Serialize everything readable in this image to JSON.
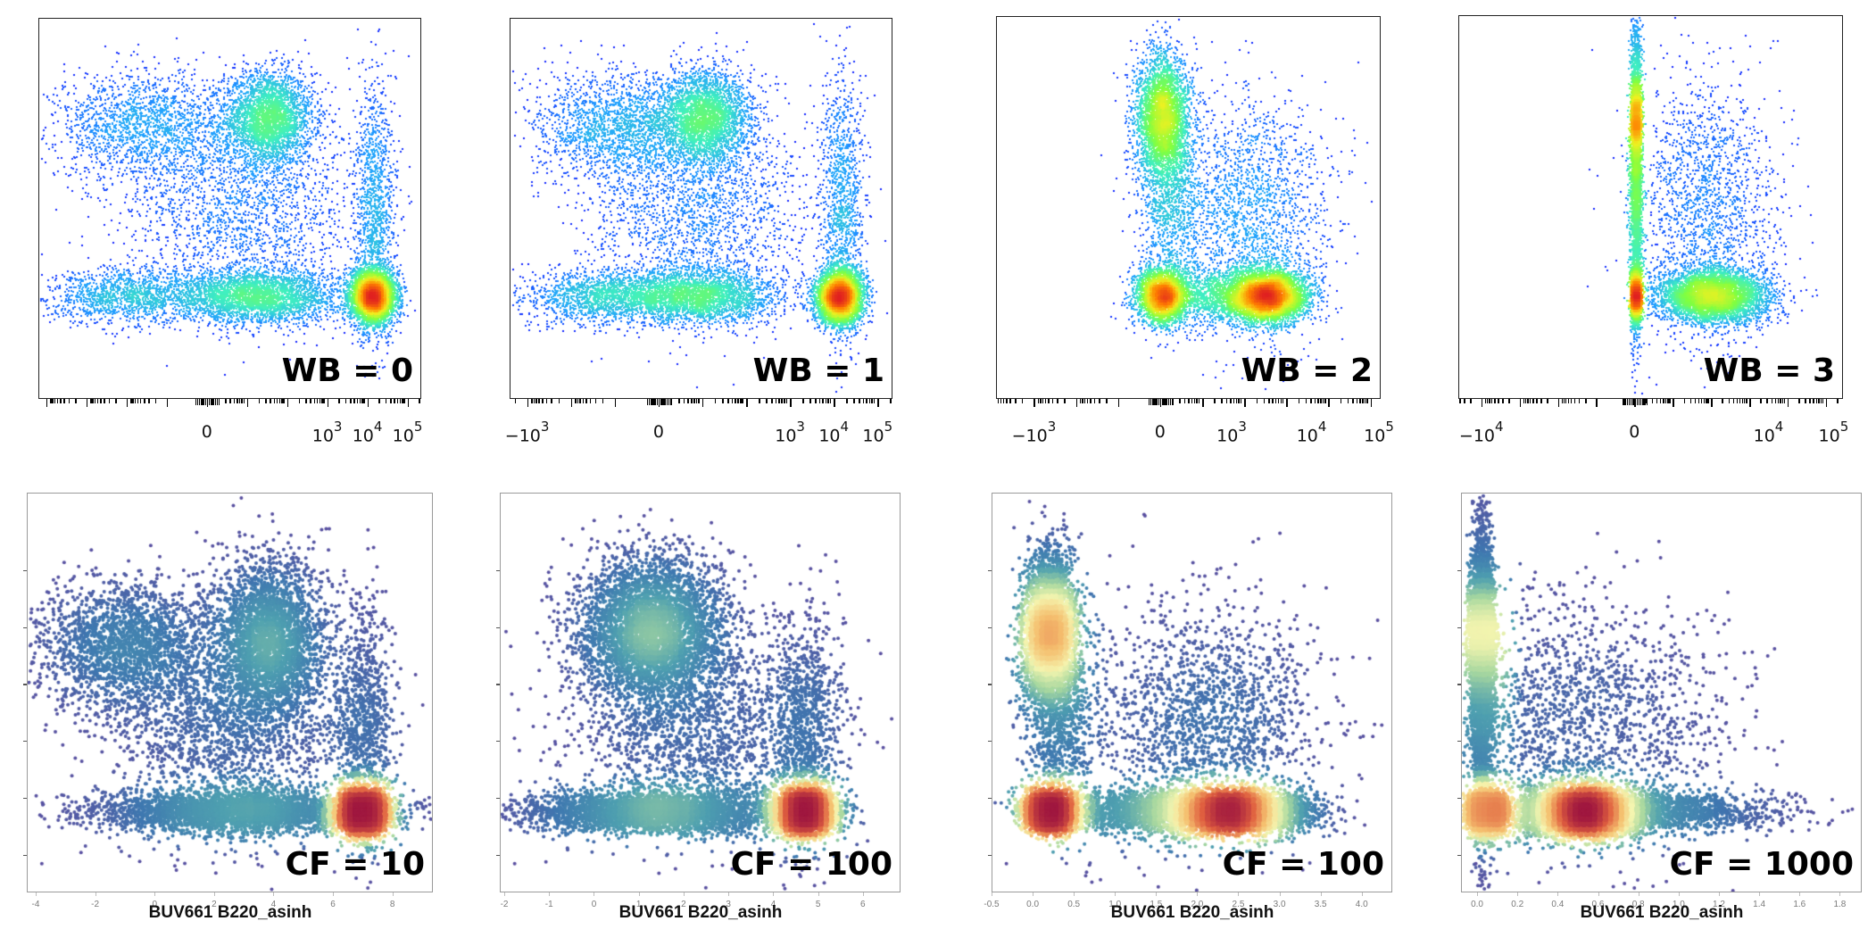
{
  "chart_data": [
    {
      "type": "scatter",
      "style": "flow-pseudocolor",
      "row": "top",
      "label": "WB = 0",
      "xlabel": "",
      "ylabel": "",
      "x_scale": "biexponential",
      "xlim": [
        -4.2,
        5.3
      ],
      "ylim": [
        0,
        1
      ],
      "tick_labels": [
        {
          "text": "0",
          "sup": "",
          "pos": 0
        },
        {
          "text": "10",
          "sup": "3",
          "pos": 3
        },
        {
          "text": "10",
          "sup": "4",
          "pos": 4
        },
        {
          "text": "10",
          "sup": "5",
          "pos": 5
        }
      ],
      "colormap": [
        "#1010ff",
        "#22a0ff",
        "#40f0c0",
        "#80ff40",
        "#f0f020",
        "#ff8000",
        "#e02020"
      ],
      "clusters": [
        {
          "name": "upper-left population",
          "x": 1.5,
          "y": 0.74,
          "sx": 0.55,
          "sy": 0.06,
          "n": 9000
        },
        {
          "name": "upper-left spread",
          "x": -1.6,
          "y": 0.72,
          "sx": 1.1,
          "sy": 0.07,
          "n": 5000
        },
        {
          "name": "lower-left population",
          "x": 1.2,
          "y": 0.27,
          "sx": 1.0,
          "sy": 0.035,
          "n": 9000
        },
        {
          "name": "lower-left spread",
          "x": -2.0,
          "y": 0.27,
          "sx": 1.0,
          "sy": 0.035,
          "n": 4000
        },
        {
          "name": "B220+ population",
          "x": 4.1,
          "y": 0.27,
          "sx": 0.28,
          "sy": 0.035,
          "n": 14000
        },
        {
          "name": "B220+ vertical",
          "x": 4.15,
          "y": 0.5,
          "sx": 0.25,
          "sy": 0.17,
          "n": 3500
        },
        {
          "name": "middle scatter",
          "x": 0.8,
          "y": 0.5,
          "sx": 1.5,
          "sy": 0.14,
          "n": 6000
        }
      ]
    },
    {
      "type": "scatter",
      "style": "flow-pseudocolor",
      "row": "top",
      "label": "WB = 1",
      "xlabel": "",
      "ylabel": "",
      "x_scale": "biexponential",
      "xlim": [
        -3.4,
        5.3
      ],
      "ylim": [
        0,
        1
      ],
      "tick_labels": [
        {
          "text": "−10",
          "sup": "3",
          "pos": -3
        },
        {
          "text": "0",
          "sup": "",
          "pos": 0
        },
        {
          "text": "10",
          "sup": "3",
          "pos": 3
        },
        {
          "text": "10",
          "sup": "4",
          "pos": 4
        },
        {
          "text": "10",
          "sup": "5",
          "pos": 5
        }
      ],
      "colormap": [
        "#1010ff",
        "#22a0ff",
        "#40f0c0",
        "#80ff40",
        "#f0f020",
        "#ff8000",
        "#e02020"
      ],
      "clusters": [
        {
          "name": "upper-left population",
          "x": 1.0,
          "y": 0.74,
          "sx": 0.5,
          "sy": 0.06,
          "n": 9000
        },
        {
          "name": "upper-left spread",
          "x": -1.0,
          "y": 0.72,
          "sx": 0.9,
          "sy": 0.07,
          "n": 5000
        },
        {
          "name": "lower-left population",
          "x": 0.8,
          "y": 0.27,
          "sx": 0.9,
          "sy": 0.035,
          "n": 9000
        },
        {
          "name": "lower-left spread",
          "x": -1.4,
          "y": 0.27,
          "sx": 0.8,
          "sy": 0.035,
          "n": 4000
        },
        {
          "name": "B220+ population",
          "x": 4.1,
          "y": 0.27,
          "sx": 0.26,
          "sy": 0.035,
          "n": 14000
        },
        {
          "name": "B220+ vertical",
          "x": 4.15,
          "y": 0.5,
          "sx": 0.24,
          "sy": 0.17,
          "n": 3500
        },
        {
          "name": "middle scatter",
          "x": 0.8,
          "y": 0.5,
          "sx": 1.3,
          "sy": 0.14,
          "n": 6000
        }
      ]
    },
    {
      "type": "scatter",
      "style": "flow-pseudocolor",
      "row": "top",
      "label": "WB = 2",
      "xlabel": "",
      "ylabel": "",
      "x_scale": "biexponential",
      "xlim": [
        -3.9,
        5.2
      ],
      "ylim": [
        0,
        1
      ],
      "tick_labels": [
        {
          "text": "−10",
          "sup": "3",
          "pos": -3
        },
        {
          "text": "0",
          "sup": "",
          "pos": 0
        },
        {
          "text": "10",
          "sup": "3",
          "pos": 1.7
        },
        {
          "text": "10",
          "sup": "4",
          "pos": 3.6
        },
        {
          "text": "10",
          "sup": "5",
          "pos": 5.2
        }
      ],
      "colormap": [
        "#1010ff",
        "#22a0ff",
        "#40f0c0",
        "#80ff40",
        "#f0f020",
        "#ff8000",
        "#e02020"
      ],
      "clusters": [
        {
          "name": "upper-left population",
          "x": 0.0,
          "y": 0.74,
          "sx": 0.3,
          "sy": 0.08,
          "n": 10000
        },
        {
          "name": "upper-left tail",
          "x": 0.2,
          "y": 0.55,
          "sx": 0.35,
          "sy": 0.15,
          "n": 4000
        },
        {
          "name": "lower-left population",
          "x": 0.0,
          "y": 0.27,
          "sx": 0.3,
          "sy": 0.035,
          "n": 9000
        },
        {
          "name": "lower spread",
          "x": 1.5,
          "y": 0.27,
          "sx": 0.9,
          "sy": 0.035,
          "n": 5000
        },
        {
          "name": "B220+ population",
          "x": 2.5,
          "y": 0.27,
          "sx": 0.45,
          "sy": 0.035,
          "n": 14000
        },
        {
          "name": "middle scatter",
          "x": 2.0,
          "y": 0.48,
          "sx": 1.0,
          "sy": 0.16,
          "n": 6000
        }
      ]
    },
    {
      "type": "scatter",
      "style": "flow-pseudocolor",
      "row": "top",
      "label": "WB = 3",
      "xlabel": "",
      "ylabel": "",
      "x_scale": "biexponential",
      "xlim": [
        -4.6,
        5.4
      ],
      "ylim": [
        0,
        1
      ],
      "tick_labels": [
        {
          "text": "−10",
          "sup": "4",
          "pos": -4
        },
        {
          "text": "0",
          "sup": "",
          "pos": 0
        },
        {
          "text": "10",
          "sup": "4",
          "pos": 3.5
        },
        {
          "text": "10",
          "sup": "5",
          "pos": 5.2
        }
      ],
      "colormap": [
        "#1010ff",
        "#22a0ff",
        "#40f0c0",
        "#80ff40",
        "#f0f020",
        "#ff8000",
        "#e02020"
      ],
      "clusters": [
        {
          "name": "vertical negative population",
          "x": 0.0,
          "y": 0.6,
          "sx": 0.08,
          "sy": 0.2,
          "n": 9000
        },
        {
          "name": "upper dense",
          "x": 0.0,
          "y": 0.74,
          "sx": 0.06,
          "sy": 0.06,
          "n": 5000
        },
        {
          "name": "lower-left population",
          "x": 0.0,
          "y": 0.27,
          "sx": 0.07,
          "sy": 0.035,
          "n": 6000
        },
        {
          "name": "B220+ population",
          "x": 2.0,
          "y": 0.27,
          "sx": 0.7,
          "sy": 0.035,
          "n": 14000
        },
        {
          "name": "middle scatter",
          "x": 1.8,
          "y": 0.5,
          "sx": 0.9,
          "sy": 0.17,
          "n": 5000
        }
      ]
    },
    {
      "type": "scatter",
      "style": "density-colored",
      "row": "bottom",
      "label": "CF = 10",
      "xlabel": "BUV661 B220_asinh",
      "ylabel": "",
      "xlim": [
        -4.3,
        9.3
      ],
      "ylim": [
        0,
        1
      ],
      "x_ticks": [
        -4,
        -2,
        0,
        2,
        4,
        6,
        8
      ],
      "tick_labels": [
        {
          "text": "-4",
          "pos": -4
        },
        {
          "text": "-2",
          "pos": -2
        },
        {
          "text": "0",
          "pos": 0
        },
        {
          "text": "2",
          "pos": 2
        },
        {
          "text": "4",
          "pos": 4
        },
        {
          "text": "6",
          "pos": 6
        },
        {
          "text": "8",
          "pos": 8
        }
      ],
      "colormap": [
        "#5a4fa0",
        "#3f78b0",
        "#4fa0b0",
        "#a8d8a0",
        "#f5f5b0",
        "#f5c070",
        "#e06040",
        "#a01840"
      ],
      "clusters": [
        {
          "name": "upper population",
          "x": 3.8,
          "y": 0.63,
          "sx": 0.9,
          "sy": 0.1,
          "n": 9000
        },
        {
          "name": "upper-left spread",
          "x": -1.0,
          "y": 0.62,
          "sx": 1.5,
          "sy": 0.08,
          "n": 6000
        },
        {
          "name": "lower-left population",
          "x": 3.0,
          "y": 0.2,
          "sx": 2.5,
          "sy": 0.025,
          "n": 10000
        },
        {
          "name": "B220+ population",
          "x": 7.0,
          "y": 0.2,
          "sx": 0.35,
          "sy": 0.025,
          "n": 14000
        },
        {
          "name": "B220+ vertical",
          "x": 7.0,
          "y": 0.4,
          "sx": 0.5,
          "sy": 0.15,
          "n": 3000
        },
        {
          "name": "middle scatter",
          "x": 2.5,
          "y": 0.4,
          "sx": 2.0,
          "sy": 0.13,
          "n": 5000
        }
      ]
    },
    {
      "type": "scatter",
      "style": "density-colored",
      "row": "bottom",
      "label": "CF = 100",
      "xlabel": "BUV661 B220_asinh",
      "ylabel": "",
      "xlim": [
        -2.1,
        6.8
      ],
      "ylim": [
        0,
        1
      ],
      "x_ticks": [
        -2,
        -1,
        0,
        1,
        2,
        3,
        4,
        5,
        6
      ],
      "tick_labels": [
        {
          "text": "-2",
          "pos": -2
        },
        {
          "text": "-1",
          "pos": -1
        },
        {
          "text": "0",
          "pos": 0
        },
        {
          "text": "1",
          "pos": 1
        },
        {
          "text": "2",
          "pos": 2
        },
        {
          "text": "3",
          "pos": 3
        },
        {
          "text": "4",
          "pos": 4
        },
        {
          "text": "5",
          "pos": 5
        },
        {
          "text": "6",
          "pos": 6
        }
      ],
      "colormap": [
        "#5a4fa0",
        "#3f78b0",
        "#4fa0b0",
        "#a8d8a0",
        "#f5f5b0",
        "#f5c070",
        "#e06040",
        "#a01840"
      ],
      "clusters": [
        {
          "name": "upper population",
          "x": 1.3,
          "y": 0.66,
          "sx": 0.8,
          "sy": 0.09,
          "n": 12000
        },
        {
          "name": "lower-left population",
          "x": 1.4,
          "y": 0.2,
          "sx": 1.5,
          "sy": 0.025,
          "n": 10000
        },
        {
          "name": "B220+ population",
          "x": 4.7,
          "y": 0.2,
          "sx": 0.32,
          "sy": 0.025,
          "n": 14000
        },
        {
          "name": "B220+ vertical",
          "x": 4.7,
          "y": 0.4,
          "sx": 0.4,
          "sy": 0.15,
          "n": 3000
        },
        {
          "name": "middle scatter",
          "x": 2.2,
          "y": 0.4,
          "sx": 1.4,
          "sy": 0.13,
          "n": 5000
        }
      ]
    },
    {
      "type": "scatter",
      "style": "density-colored",
      "row": "bottom",
      "label": "CF = 100",
      "xlabel": "BUV661 B220_asinh",
      "ylabel": "",
      "xlim": [
        -0.5,
        4.35
      ],
      "ylim": [
        0,
        1
      ],
      "x_ticks": [
        -0.5,
        0.0,
        0.5,
        1.0,
        1.5,
        2.0,
        2.5,
        3.0,
        3.5,
        4.0
      ],
      "tick_labels": [
        {
          "text": "-0.5",
          "pos": -0.5
        },
        {
          "text": "0.0",
          "pos": 0.0
        },
        {
          "text": "0.5",
          "pos": 0.5
        },
        {
          "text": "1.0",
          "pos": 1.0
        },
        {
          "text": "1.5",
          "pos": 1.5
        },
        {
          "text": "2.0",
          "pos": 2.0
        },
        {
          "text": "2.5",
          "pos": 2.5
        },
        {
          "text": "3.0",
          "pos": 3.0
        },
        {
          "text": "3.5",
          "pos": 3.5
        },
        {
          "text": "4.0",
          "pos": 4.0
        }
      ],
      "colormap": [
        "#5a4fa0",
        "#3f78b0",
        "#4fa0b0",
        "#a8d8a0",
        "#f5f5b0",
        "#f5c070",
        "#e06040",
        "#a01840"
      ],
      "clusters": [
        {
          "name": "upper-left population",
          "x": 0.18,
          "y": 0.66,
          "sx": 0.15,
          "sy": 0.09,
          "n": 10000
        },
        {
          "name": "upper-left tail",
          "x": 0.3,
          "y": 0.5,
          "sx": 0.2,
          "sy": 0.15,
          "n": 4000
        },
        {
          "name": "lower-left population",
          "x": 0.18,
          "y": 0.2,
          "sx": 0.15,
          "sy": 0.025,
          "n": 9000
        },
        {
          "name": "B220+ population",
          "x": 2.4,
          "y": 0.2,
          "sx": 0.45,
          "sy": 0.025,
          "n": 15000
        },
        {
          "name": "lower spread",
          "x": 1.2,
          "y": 0.2,
          "sx": 0.6,
          "sy": 0.025,
          "n": 4000
        },
        {
          "name": "middle scatter",
          "x": 2.1,
          "y": 0.42,
          "sx": 0.7,
          "sy": 0.15,
          "n": 5000
        }
      ]
    },
    {
      "type": "scatter",
      "style": "density-colored",
      "row": "bottom",
      "label": "CF = 1000",
      "xlabel": "BUV661 B220_asinh",
      "ylabel": "",
      "xlim": [
        -0.08,
        1.9
      ],
      "ylim": [
        0,
        1
      ],
      "x_ticks": [
        0.0,
        0.2,
        0.4,
        0.6,
        0.8,
        1.0,
        1.2,
        1.4,
        1.6,
        1.8
      ],
      "tick_labels": [
        {
          "text": "0.0",
          "pos": 0.0
        },
        {
          "text": "0.2",
          "pos": 0.2
        },
        {
          "text": "0.4",
          "pos": 0.4
        },
        {
          "text": "0.6",
          "pos": 0.6
        },
        {
          "text": "0.8",
          "pos": 0.8
        },
        {
          "text": "1.0",
          "pos": 1.0
        },
        {
          "text": "1.2",
          "pos": 1.2
        },
        {
          "text": "1.4",
          "pos": 1.4
        },
        {
          "text": "1.6",
          "pos": 1.6
        },
        {
          "text": "1.8",
          "pos": 1.8
        }
      ],
      "colormap": [
        "#5a4fa0",
        "#3f78b0",
        "#4fa0b0",
        "#a8d8a0",
        "#f5f5b0",
        "#f5c070",
        "#e06040",
        "#a01840"
      ],
      "clusters": [
        {
          "name": "vertical population",
          "x": 0.02,
          "y": 0.55,
          "sx": 0.03,
          "sy": 0.2,
          "n": 8000
        },
        {
          "name": "upper-left population",
          "x": 0.02,
          "y": 0.66,
          "sx": 0.03,
          "sy": 0.07,
          "n": 5000
        },
        {
          "name": "lower-left population",
          "x": 0.04,
          "y": 0.2,
          "sx": 0.05,
          "sy": 0.025,
          "n": 8000
        },
        {
          "name": "B220+ population",
          "x": 0.52,
          "y": 0.2,
          "sx": 0.15,
          "sy": 0.028,
          "n": 16000
        },
        {
          "name": "lower spread",
          "x": 0.9,
          "y": 0.2,
          "sx": 0.3,
          "sy": 0.025,
          "n": 4000
        },
        {
          "name": "middle scatter",
          "x": 0.5,
          "y": 0.42,
          "sx": 0.35,
          "sy": 0.16,
          "n": 5000
        }
      ]
    }
  ]
}
